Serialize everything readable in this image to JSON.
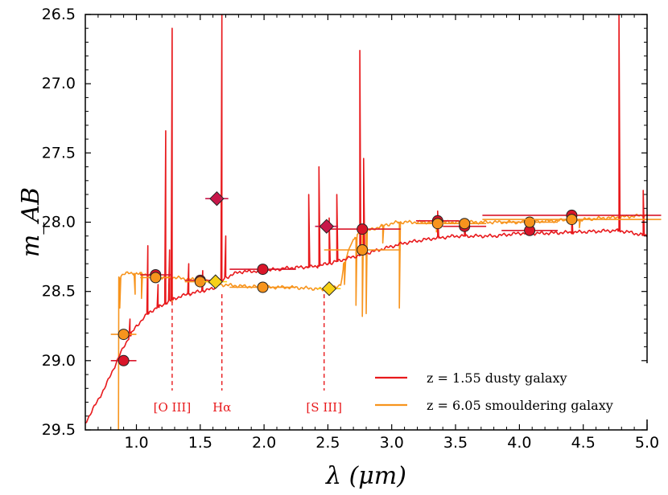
{
  "chart_data": {
    "type": "line",
    "xlabel": "λ (μm)",
    "ylabel": "m_AB",
    "xlim": [
      0.6,
      5.0
    ],
    "ylim": [
      29.5,
      26.5
    ],
    "y_inverted": true,
    "x_ticks": [
      "1.0",
      "1.5",
      "2.0",
      "2.5",
      "3.0",
      "3.5",
      "4.0",
      "4.5",
      "5.0"
    ],
    "y_ticks": [
      "26.5",
      "27.0",
      "27.5",
      "28.0",
      "28.5",
      "29.0",
      "29.5"
    ],
    "colors": {
      "dusty": "#e8191c",
      "dusty_marker": "#d9162a",
      "smouldering": "#f7941d",
      "smouldering_marker": "#f7941d",
      "diamond_red": "#c8174a",
      "diamond_yellow": "#f7d117",
      "label": "#e8191c"
    },
    "series": [
      {
        "name": "z = 1.55 dusty galaxy",
        "legend_label": "z = 1.55 dusty galaxy",
        "color": "#e8191c",
        "continuum": [
          [
            0.6,
            29.45
          ],
          [
            0.75,
            29.2
          ],
          [
            0.85,
            29.0
          ],
          [
            0.9,
            28.9
          ],
          [
            0.95,
            28.82
          ],
          [
            1.0,
            28.75
          ],
          [
            1.05,
            28.7
          ],
          [
            1.1,
            28.65
          ],
          [
            1.2,
            28.6
          ],
          [
            1.3,
            28.55
          ],
          [
            1.4,
            28.52
          ],
          [
            1.5,
            28.5
          ],
          [
            1.6,
            28.48
          ],
          [
            1.7,
            28.4
          ],
          [
            1.8,
            28.36
          ],
          [
            2.0,
            28.35
          ],
          [
            2.2,
            28.33
          ],
          [
            2.4,
            28.32
          ],
          [
            2.5,
            28.3
          ],
          [
            2.7,
            28.25
          ],
          [
            2.9,
            28.2
          ],
          [
            3.1,
            28.15
          ],
          [
            3.3,
            28.12
          ],
          [
            3.5,
            28.1
          ],
          [
            3.8,
            28.1
          ],
          [
            4.0,
            28.08
          ],
          [
            4.2,
            28.08
          ],
          [
            4.5,
            28.07
          ],
          [
            4.75,
            28.06
          ],
          [
            4.85,
            28.07
          ],
          [
            5.0,
            28.1
          ]
        ],
        "emission_lines": [
          {
            "x": 0.95,
            "peak": 28.7
          },
          {
            "x": 1.09,
            "peak": 28.17
          },
          {
            "x": 1.17,
            "peak": 28.45
          },
          {
            "x": 1.23,
            "peak": 27.34
          },
          {
            "x": 1.26,
            "peak": 28.2
          },
          {
            "x": 1.28,
            "peak": 26.6
          },
          {
            "x": 1.41,
            "peak": 28.3
          },
          {
            "x": 1.52,
            "peak": 28.35
          },
          {
            "x": 1.67,
            "peak": 26.5
          },
          {
            "x": 1.7,
            "peak": 28.1
          },
          {
            "x": 2.35,
            "peak": 27.8
          },
          {
            "x": 2.43,
            "peak": 27.6
          },
          {
            "x": 2.51,
            "peak": 27.97
          },
          {
            "x": 2.57,
            "peak": 27.8
          },
          {
            "x": 2.75,
            "peak": 26.76
          },
          {
            "x": 2.78,
            "peak": 27.54
          },
          {
            "x": 3.36,
            "peak": 27.92
          },
          {
            "x": 3.57,
            "peak": 28.0
          },
          {
            "x": 4.08,
            "peak": 27.97
          },
          {
            "x": 4.41,
            "peak": 27.92
          },
          {
            "x": 4.78,
            "peak": 26.5
          },
          {
            "x": 4.97,
            "peak": 27.77
          }
        ],
        "photometry": [
          {
            "x": 0.9,
            "y": 29.0,
            "xerr": 0.1
          },
          {
            "x": 1.15,
            "y": 28.38,
            "xerr": 0.12
          },
          {
            "x": 1.5,
            "y": 28.42,
            "xerr": 0.12
          },
          {
            "x": 1.99,
            "y": 28.34,
            "xerr": 0.26
          },
          {
            "x": 2.77,
            "y": 28.05,
            "xerr": 0.3
          },
          {
            "x": 3.36,
            "y": 27.99,
            "xerr": 0.17
          },
          {
            "x": 3.57,
            "y": 28.03,
            "xerr": 0.17
          },
          {
            "x": 4.08,
            "y": 28.06,
            "xerr": 0.22
          },
          {
            "x": 4.41,
            "y": 27.95,
            "xerr": 0.7
          }
        ]
      },
      {
        "name": "z = 6.05 smouldering galaxy",
        "legend_label": "z = 6.05 smouldering galaxy",
        "color": "#f7941d",
        "continuum": [
          [
            0.86,
            29.55
          ],
          [
            0.865,
            28.4
          ],
          [
            0.9,
            28.37
          ],
          [
            1.0,
            28.37
          ],
          [
            1.1,
            28.38
          ],
          [
            1.2,
            28.4
          ],
          [
            1.3,
            28.4
          ],
          [
            1.4,
            28.41
          ],
          [
            1.5,
            28.42
          ],
          [
            1.6,
            28.43
          ],
          [
            1.65,
            28.45
          ],
          [
            1.8,
            28.46
          ],
          [
            2.0,
            28.47
          ],
          [
            2.2,
            28.47
          ],
          [
            2.4,
            28.48
          ],
          [
            2.5,
            28.49
          ],
          [
            2.6,
            28.45
          ],
          [
            2.63,
            28.3
          ],
          [
            2.68,
            28.15
          ],
          [
            2.75,
            28.08
          ],
          [
            2.85,
            28.05
          ],
          [
            2.95,
            28.02
          ],
          [
            3.05,
            28.0
          ],
          [
            3.2,
            28.0
          ],
          [
            3.5,
            28.0
          ],
          [
            4.0,
            28.0
          ],
          [
            4.5,
            27.98
          ],
          [
            5.0,
            27.95
          ]
        ],
        "absorption_lines": [
          {
            "x": 0.87,
            "depth": 28.62
          },
          {
            "x": 0.99,
            "depth": 28.52
          },
          {
            "x": 1.04,
            "depth": 28.55
          },
          {
            "x": 1.28,
            "depth": 28.58
          },
          {
            "x": 2.63,
            "depth": 28.45
          },
          {
            "x": 2.72,
            "depth": 28.6
          },
          {
            "x": 2.77,
            "depth": 28.68
          },
          {
            "x": 2.8,
            "depth": 28.66
          },
          {
            "x": 2.93,
            "depth": 28.15
          },
          {
            "x": 3.06,
            "depth": 28.62
          },
          {
            "x": 3.35,
            "depth": 28.07
          },
          {
            "x": 3.57,
            "depth": 28.05
          },
          {
            "x": 4.1,
            "depth": 28.05
          },
          {
            "x": 4.47,
            "depth": 28.04
          }
        ],
        "photometry": [
          {
            "x": 0.9,
            "y": 28.81,
            "xerr": 0.1
          },
          {
            "x": 1.15,
            "y": 28.4,
            "xerr": 0.12
          },
          {
            "x": 1.5,
            "y": 28.43,
            "xerr": 0.12
          },
          {
            "x": 1.99,
            "y": 28.47,
            "xerr": 0.26
          },
          {
            "x": 2.77,
            "y": 28.2,
            "xerr": 0.3
          },
          {
            "x": 3.36,
            "y": 28.01,
            "xerr": 0.17
          },
          {
            "x": 3.57,
            "y": 28.01,
            "xerr": 0.17
          },
          {
            "x": 4.08,
            "y": 28.0,
            "xerr": 0.22
          },
          {
            "x": 4.41,
            "y": 27.98,
            "xerr": 0.7
          }
        ]
      }
    ],
    "diamonds": [
      {
        "x": 1.63,
        "y": 27.83,
        "xerr": 0.09,
        "color": "#c8174a"
      },
      {
        "x": 2.49,
        "y": 28.03,
        "xerr": 0.09,
        "color": "#c8174a"
      },
      {
        "x": 1.62,
        "y": 28.43,
        "xerr": 0.09,
        "color": "#f7d117"
      },
      {
        "x": 2.51,
        "y": 28.48,
        "xerr": 0.09,
        "color": "#f7d117"
      }
    ],
    "line_markers": [
      {
        "label": "[O III]",
        "x": 1.28
      },
      {
        "label": "Hα",
        "x": 1.67
      },
      {
        "label": "[S III]",
        "x": 2.47
      }
    ],
    "legend_position": "bottom-right"
  }
}
